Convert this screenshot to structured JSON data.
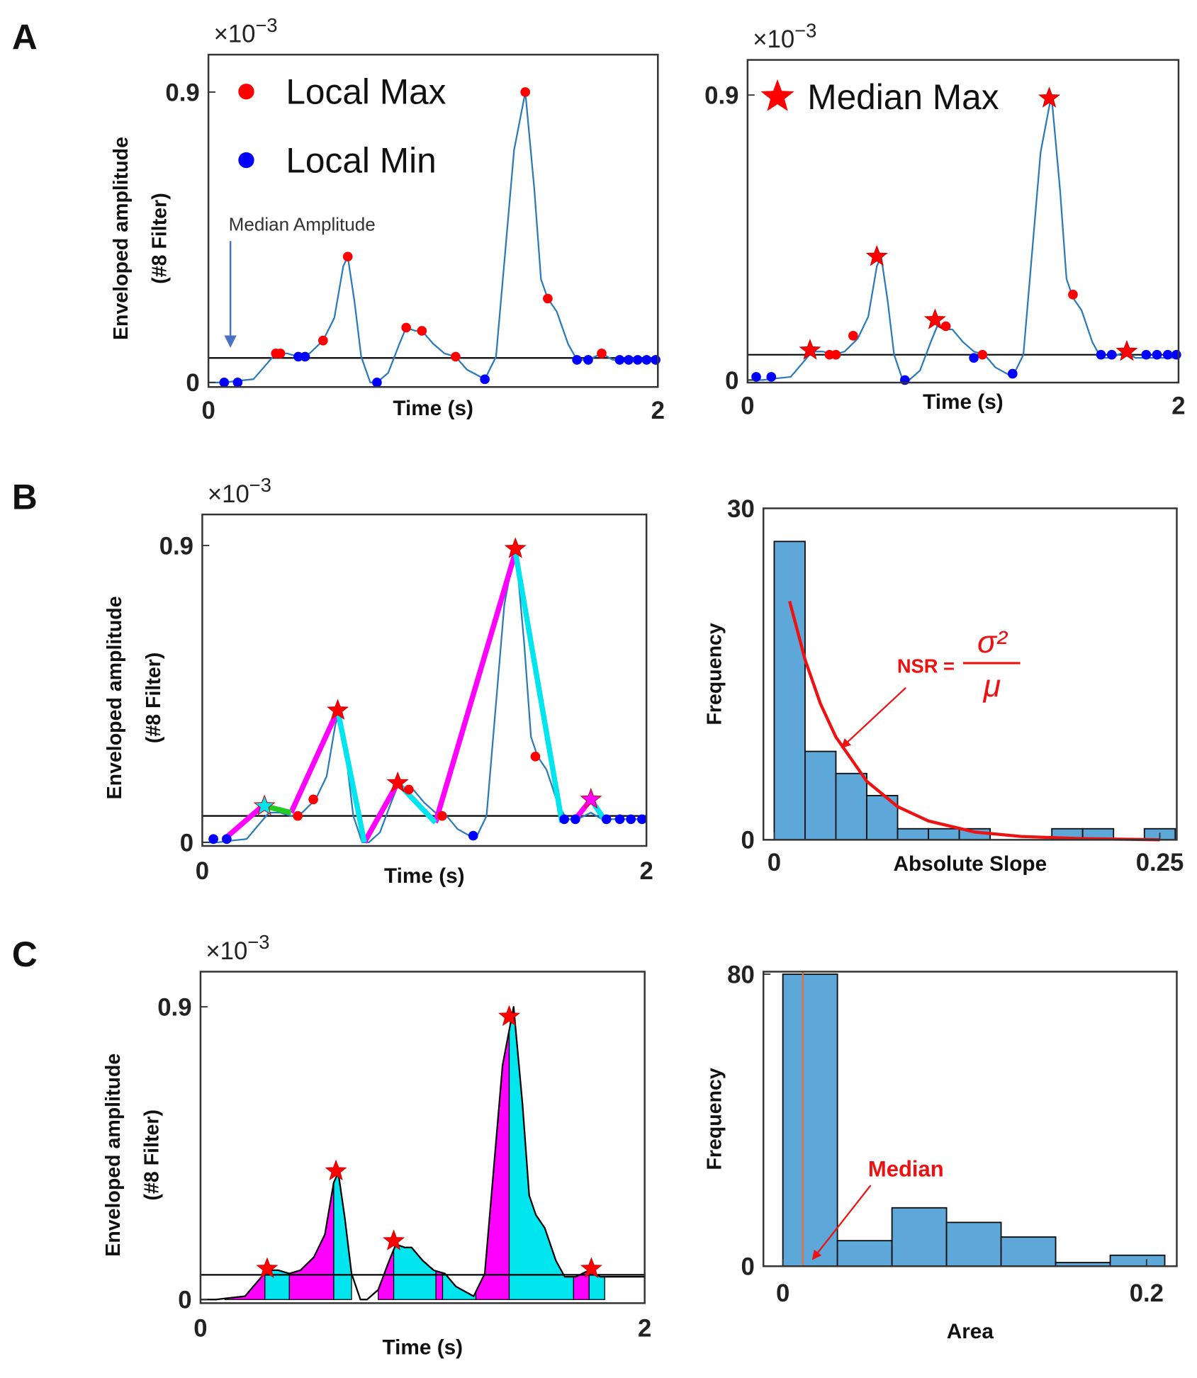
{
  "chart_data": [
    {
      "type": "line",
      "panel": "A",
      "y_multiplier": "×10",
      "y_multiplier_exponent": "−3",
      "ylabel": [
        "Enveloped amplitude",
        "(#8 Filter)"
      ],
      "xlabel": "Time (s)",
      "xlim": [
        0,
        2
      ],
      "ylim": [
        -0.014,
        1.016
      ],
      "xticks": [
        0,
        2
      ],
      "yticks": [
        0,
        0.9
      ],
      "hline": {
        "value": 0.076,
        "color": "#000000"
      },
      "annotation": "Median Amplitude",
      "series": [
        {
          "color": "#2a7ab9",
          "mode": "line",
          "x": [
            0,
            0.07,
            0.13,
            0.2,
            0.25,
            0.3,
            0.35,
            0.4,
            0.45,
            0.51,
            0.56,
            0.6,
            0.62,
            0.65,
            0.68,
            0.72,
            0.75,
            0.8,
            0.85,
            0.88,
            0.92,
            0.95,
            1.0,
            1.05,
            1.1,
            1.15,
            1.23,
            1.28,
            1.32,
            1.36,
            1.41,
            1.45,
            1.48,
            1.51,
            1.55,
            1.6,
            1.64,
            1.69,
            1.75,
            1.8,
            1.9,
            2.0
          ],
          "values": [
            0.0,
            0.0,
            0.005,
            0.01,
            0.05,
            0.09,
            0.09,
            0.08,
            0.09,
            0.13,
            0.2,
            0.36,
            0.39,
            0.25,
            0.08,
            0.0,
            0.0,
            0.03,
            0.12,
            0.17,
            0.16,
            0.16,
            0.12,
            0.09,
            0.08,
            0.04,
            0.01,
            0.08,
            0.4,
            0.72,
            0.9,
            0.6,
            0.32,
            0.26,
            0.22,
            0.12,
            0.07,
            0.07,
            0.09,
            0.07,
            0.07,
            0.07
          ]
        },
        {
          "name": "Local Max",
          "color": "#ff0000",
          "mode": "dot",
          "x": [
            0.3,
            0.32,
            0.51,
            0.62,
            0.88,
            0.95,
            1.1,
            1.41,
            1.51,
            1.75
          ],
          "values": [
            0.09,
            0.09,
            0.13,
            0.39,
            0.17,
            0.16,
            0.08,
            0.9,
            0.26,
            0.09
          ]
        },
        {
          "name": "Local Min",
          "color": "#0000ff",
          "mode": "dot",
          "x": [
            0.07,
            0.13,
            0.4,
            0.43,
            0.75,
            1.23,
            1.64,
            1.69,
            1.83,
            1.87,
            1.91,
            1.95,
            1.99
          ],
          "values": [
            0.0,
            0.0,
            0.08,
            0.08,
            0.0,
            0.01,
            0.07,
            0.07,
            0.07,
            0.07,
            0.07,
            0.07,
            0.07
          ]
        }
      ]
    },
    {
      "type": "line",
      "y_multiplier": "×10",
      "y_multiplier_exponent": "−3",
      "xlabel": "Time (s)",
      "xlim": [
        0,
        2
      ],
      "ylim": [
        -0.008,
        1.011
      ],
      "xticks": [
        0,
        2
      ],
      "yticks": [
        0,
        0.9
      ],
      "hline": {
        "value": 0.08,
        "color": "#000000"
      },
      "series": [
        {
          "color": "#2a7ab9",
          "mode": "line",
          "x": [
            0,
            0.07,
            0.13,
            0.2,
            0.25,
            0.3,
            0.35,
            0.4,
            0.45,
            0.51,
            0.56,
            0.6,
            0.62,
            0.65,
            0.68,
            0.72,
            0.75,
            0.8,
            0.85,
            0.88,
            0.92,
            0.95,
            1.0,
            1.05,
            1.1,
            1.15,
            1.23,
            1.28,
            1.32,
            1.36,
            1.41,
            1.45,
            1.48,
            1.51,
            1.55,
            1.6,
            1.64,
            1.69,
            1.75,
            1.8,
            1.9,
            2.0
          ],
          "values": [
            0.0,
            0.0,
            0.005,
            0.01,
            0.05,
            0.09,
            0.09,
            0.08,
            0.09,
            0.13,
            0.2,
            0.36,
            0.39,
            0.25,
            0.08,
            0.0,
            0.0,
            0.03,
            0.12,
            0.17,
            0.16,
            0.16,
            0.12,
            0.09,
            0.08,
            0.04,
            0.01,
            0.08,
            0.4,
            0.72,
            0.9,
            0.6,
            0.32,
            0.26,
            0.22,
            0.12,
            0.07,
            0.07,
            0.09,
            0.07,
            0.07,
            0.07
          ]
        },
        {
          "color": "#ff0000",
          "mode": "dot",
          "x": [
            0.38,
            0.41,
            0.49,
            0.92,
            1.09,
            1.51
          ],
          "values": [
            0.08,
            0.08,
            0.14,
            0.17,
            0.08,
            0.27
          ]
        },
        {
          "color": "#0000ff",
          "mode": "dot",
          "x": [
            0.04,
            0.11,
            0.73,
            1.05,
            1.23,
            1.64,
            1.69,
            1.85,
            1.9,
            1.95,
            1.99
          ],
          "values": [
            0.01,
            0.01,
            0.0,
            0.07,
            0.02,
            0.08,
            0.08,
            0.08,
            0.08,
            0.08,
            0.08
          ]
        },
        {
          "name": "Median Max",
          "color": "#ff0000",
          "mode": "star",
          "x": [
            0.29,
            0.6,
            0.87,
            1.4,
            1.76
          ],
          "values": [
            0.094,
            0.39,
            0.19,
            0.89,
            0.09
          ]
        }
      ]
    },
    {
      "type": "line",
      "panel": "B",
      "y_multiplier": "×10",
      "y_multiplier_exponent": "−3",
      "ylabel": [
        "Enveloped amplitude",
        "(#8 Filter)"
      ],
      "xlabel": "Time (s)",
      "xlim": [
        0,
        2
      ],
      "ylim": [
        -0.011,
        0.994
      ],
      "xticks": [
        0,
        2
      ],
      "yticks": [
        0,
        0.9
      ],
      "hline": {
        "value": 0.08,
        "color": "#000000"
      },
      "series": [
        {
          "color": "#2a7ab9",
          "mode": "line",
          "x": [
            0,
            0.07,
            0.13,
            0.2,
            0.25,
            0.3,
            0.35,
            0.4,
            0.45,
            0.51,
            0.56,
            0.6,
            0.62,
            0.65,
            0.68,
            0.72,
            0.75,
            0.8,
            0.85,
            0.88,
            0.92,
            0.95,
            1.0,
            1.05,
            1.1,
            1.15,
            1.23,
            1.28,
            1.32,
            1.36,
            1.41,
            1.45,
            1.48,
            1.51,
            1.55,
            1.6,
            1.64,
            1.69,
            1.75,
            1.8,
            1.9,
            2.0
          ],
          "values": [
            0.0,
            0.0,
            0.005,
            0.01,
            0.05,
            0.09,
            0.09,
            0.08,
            0.09,
            0.13,
            0.2,
            0.36,
            0.39,
            0.25,
            0.08,
            0.0,
            0.0,
            0.03,
            0.12,
            0.17,
            0.16,
            0.16,
            0.12,
            0.09,
            0.08,
            0.04,
            0.01,
            0.08,
            0.4,
            0.72,
            0.9,
            0.6,
            0.32,
            0.26,
            0.22,
            0.12,
            0.07,
            0.07,
            0.09,
            0.07,
            0.07,
            0.07
          ]
        },
        {
          "color": "#ff00ff",
          "mode": "segments",
          "x": [
            0.1,
            0.28,
            null,
            0.4,
            0.61,
            null,
            0.73,
            0.88,
            null,
            1.05,
            1.41,
            null,
            1.68,
            1.75
          ],
          "values": [
            0.01,
            0.115,
            null,
            0.09,
            0.4,
            null,
            0.0,
            0.18,
            null,
            0.06,
            0.88,
            null,
            0.07,
            0.13
          ]
        },
        {
          "color": "#00e5ee",
          "mode": "segments",
          "x": [
            0.61,
            0.73,
            null,
            0.88,
            1.05,
            null,
            1.41,
            1.62,
            null,
            1.75,
            1.82
          ],
          "values": [
            0.4,
            0.0,
            null,
            0.18,
            0.06,
            null,
            0.88,
            0.06,
            null,
            0.13,
            0.06
          ]
        },
        {
          "color": "#22cc22",
          "mode": "segments",
          "x": [
            0.28,
            0.4
          ],
          "values": [
            0.11,
            0.09
          ]
        },
        {
          "color": "#ff0000",
          "mode": "dot",
          "x": [
            0.43,
            0.5,
            0.93,
            1.08,
            1.5
          ],
          "values": [
            0.08,
            0.13,
            0.16,
            0.08,
            0.26
          ]
        },
        {
          "color": "#0000ff",
          "mode": "dot",
          "x": [
            0.05,
            0.11,
            1.22,
            1.63,
            1.68,
            1.82,
            1.88,
            1.93,
            1.98
          ],
          "values": [
            0.01,
            0.01,
            0.02,
            0.07,
            0.07,
            0.07,
            0.07,
            0.07,
            0.07
          ]
        },
        {
          "color": "#ff0000",
          "mode": "star",
          "x": [
            0.61,
            0.88,
            1.41
          ],
          "values": [
            0.4,
            0.18,
            0.89
          ]
        },
        {
          "color": "#00e5ee",
          "mode": "star",
          "x": [
            0.28
          ],
          "values": [
            0.11
          ]
        },
        {
          "color": "#ff00ff",
          "mode": "star",
          "x": [
            1.75
          ],
          "values": [
            0.13
          ]
        }
      ]
    },
    {
      "type": "histogram",
      "ylabel": [
        "Frequency"
      ],
      "xlabel": "Absolute Slope",
      "xlim": [
        -0.007,
        0.261
      ],
      "ylim": [
        0,
        30
      ],
      "xticks": [
        0,
        0.25
      ],
      "yticks": [
        0,
        30
      ],
      "color": "#5ea7d9",
      "bins": [
        0,
        0.02,
        0.04,
        0.06,
        0.08,
        0.1,
        0.12,
        0.14,
        0.16,
        0.18,
        0.2,
        0.22,
        0.24,
        0.26
      ],
      "counts": [
        27,
        8,
        6,
        4,
        1,
        1,
        1,
        0,
        0,
        1,
        1,
        0,
        1
      ],
      "fit": {
        "color": "#ee1111",
        "x": [
          0.01,
          0.02,
          0.03,
          0.04,
          0.06,
          0.08,
          0.1,
          0.13,
          0.16,
          0.2,
          0.25
        ],
        "y": [
          21.6,
          16.3,
          12.3,
          9.3,
          5.3,
          3.0,
          1.7,
          0.7,
          0.3,
          0.1,
          0.0
        ]
      },
      "formula": {
        "label": "NSR =",
        "numerator": "σ²",
        "denominator": "μ"
      }
    },
    {
      "type": "line",
      "panel": "C",
      "y_multiplier": "×10",
      "y_multiplier_exponent": "−3",
      "ylabel": [
        "Enveloped amplitude",
        "(#8 Filter)"
      ],
      "xlabel": "Time (s)",
      "xlim": [
        0,
        2
      ],
      "ylim": [
        -0.011,
        1.008
      ],
      "xticks": [
        0,
        2
      ],
      "yticks": [
        0,
        0.9
      ],
      "hline": {
        "value": 0.076,
        "color": "#000000"
      },
      "fills": [
        {
          "color": "#ff00ff",
          "x": [
            0.11,
            0.29
          ]
        },
        {
          "color": "#00e5ee",
          "x": [
            0.29,
            0.4
          ]
        },
        {
          "color": "#ff00ff",
          "x": [
            0.4,
            0.6
          ]
        },
        {
          "color": "#00e5ee",
          "x": [
            0.6,
            0.68
          ]
        },
        {
          "color": "#ff00ff",
          "x": [
            0.8,
            0.87
          ]
        },
        {
          "color": "#00e5ee",
          "x": [
            0.87,
            1.06
          ]
        },
        {
          "color": "#ff00ff",
          "x": [
            1.06,
            1.09
          ]
        },
        {
          "color": "#00e5ee",
          "x": [
            1.09,
            1.24
          ]
        },
        {
          "color": "#ff00ff",
          "x": [
            1.24,
            1.39
          ]
        },
        {
          "color": "#00e5ee",
          "x": [
            1.39,
            1.68
          ]
        },
        {
          "color": "#ff00ff",
          "x": [
            1.68,
            1.75
          ]
        },
        {
          "color": "#00e5ee",
          "x": [
            1.75,
            1.82
          ]
        }
      ],
      "series": [
        {
          "color": "#000000",
          "mode": "line",
          "x": [
            0,
            0.07,
            0.13,
            0.2,
            0.25,
            0.3,
            0.35,
            0.4,
            0.45,
            0.51,
            0.56,
            0.6,
            0.62,
            0.65,
            0.68,
            0.72,
            0.75,
            0.8,
            0.85,
            0.88,
            0.92,
            0.95,
            1.0,
            1.05,
            1.1,
            1.15,
            1.23,
            1.28,
            1.32,
            1.36,
            1.41,
            1.45,
            1.48,
            1.51,
            1.55,
            1.6,
            1.64,
            1.69,
            1.75,
            1.8,
            1.9,
            2.0
          ],
          "values": [
            0.0,
            0.0,
            0.005,
            0.01,
            0.05,
            0.09,
            0.09,
            0.08,
            0.09,
            0.13,
            0.2,
            0.36,
            0.39,
            0.25,
            0.08,
            0.0,
            0.0,
            0.03,
            0.12,
            0.17,
            0.16,
            0.16,
            0.12,
            0.09,
            0.08,
            0.04,
            0.01,
            0.08,
            0.4,
            0.72,
            0.9,
            0.6,
            0.32,
            0.26,
            0.22,
            0.12,
            0.07,
            0.07,
            0.09,
            0.07,
            0.07,
            0.07
          ]
        },
        {
          "color": "#ff0000",
          "mode": "star",
          "x": [
            0.3,
            0.61,
            0.87,
            1.39,
            1.76
          ],
          "values": [
            0.095,
            0.395,
            0.18,
            0.87,
            0.095
          ]
        }
      ]
    },
    {
      "type": "histogram",
      "ylabel": [
        "Frequency"
      ],
      "xlabel": "Area",
      "xlim": [
        -0.0107,
        0.2166
      ],
      "ylim": [
        0,
        80.7
      ],
      "xticks": [
        0,
        0.2
      ],
      "yticks": [
        0,
        80
      ],
      "color": "#5ea7d9",
      "bins": [
        0,
        0.03,
        0.06,
        0.09,
        0.12,
        0.15,
        0.18,
        0.21
      ],
      "counts": [
        80,
        7,
        16,
        12,
        8,
        1,
        3
      ],
      "median": {
        "value": 0.011,
        "color": "#e0704a"
      },
      "annotation": "Median"
    }
  ]
}
